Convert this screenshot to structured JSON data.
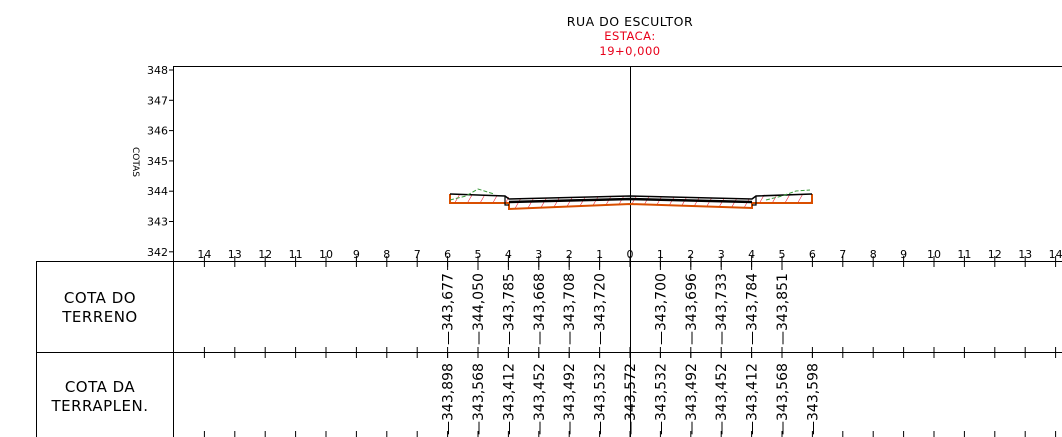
{
  "header": {
    "road_name": "RUA DO ESCULTOR",
    "station_label": "ESTACA:",
    "station_value": "19+0,000"
  },
  "colors": {
    "annotation_red": "#e8001a",
    "cut_fill_orange": "#d94f00",
    "terrain_green": "#3a9a3a",
    "line_black": "#000000"
  },
  "chart": {
    "ylabel": "COTAS",
    "y_ticks": [
      "348",
      "347",
      "346",
      "345",
      "344",
      "343",
      "342"
    ],
    "x_ticks": [
      "14",
      "13",
      "12",
      "11",
      "10",
      "9",
      "8",
      "7",
      "6",
      "5",
      "4",
      "3",
      "2",
      "1",
      "0",
      "1",
      "2",
      "3",
      "4",
      "5",
      "6",
      "7",
      "8",
      "9",
      "10",
      "11",
      "12",
      "13",
      "14"
    ]
  },
  "table": {
    "row1_label": [
      "COTA DO",
      "TERRENO"
    ],
    "row2_label": [
      "COTA DA",
      "TERRAPLEN."
    ],
    "terreno_values": [
      {
        "offset": -6,
        "value": "343,677"
      },
      {
        "offset": -5,
        "value": "344,050"
      },
      {
        "offset": -4,
        "value": "343,785"
      },
      {
        "offset": -3,
        "value": "343,668"
      },
      {
        "offset": -2,
        "value": "343,708"
      },
      {
        "offset": -1,
        "value": "343,720"
      },
      {
        "offset": 1,
        "value": "343,700"
      },
      {
        "offset": 2,
        "value": "343,696"
      },
      {
        "offset": 3,
        "value": "343,733"
      },
      {
        "offset": 4,
        "value": "343,784"
      },
      {
        "offset": 5,
        "value": "343,851"
      }
    ],
    "terraplen_values": [
      {
        "offset": -6,
        "value": "343,898"
      },
      {
        "offset": -5,
        "value": "343,568"
      },
      {
        "offset": -4,
        "value": "343,412"
      },
      {
        "offset": -3,
        "value": "343,452"
      },
      {
        "offset": -2,
        "value": "343,492"
      },
      {
        "offset": -1,
        "value": "343,532"
      },
      {
        "offset": 0,
        "value": "343,572"
      },
      {
        "offset": 1,
        "value": "343,532"
      },
      {
        "offset": 2,
        "value": "343,492"
      },
      {
        "offset": 3,
        "value": "343,452"
      },
      {
        "offset": 4,
        "value": "343,412"
      },
      {
        "offset": 5,
        "value": "343,568"
      },
      {
        "offset": 6,
        "value": "343,598"
      }
    ]
  }
}
